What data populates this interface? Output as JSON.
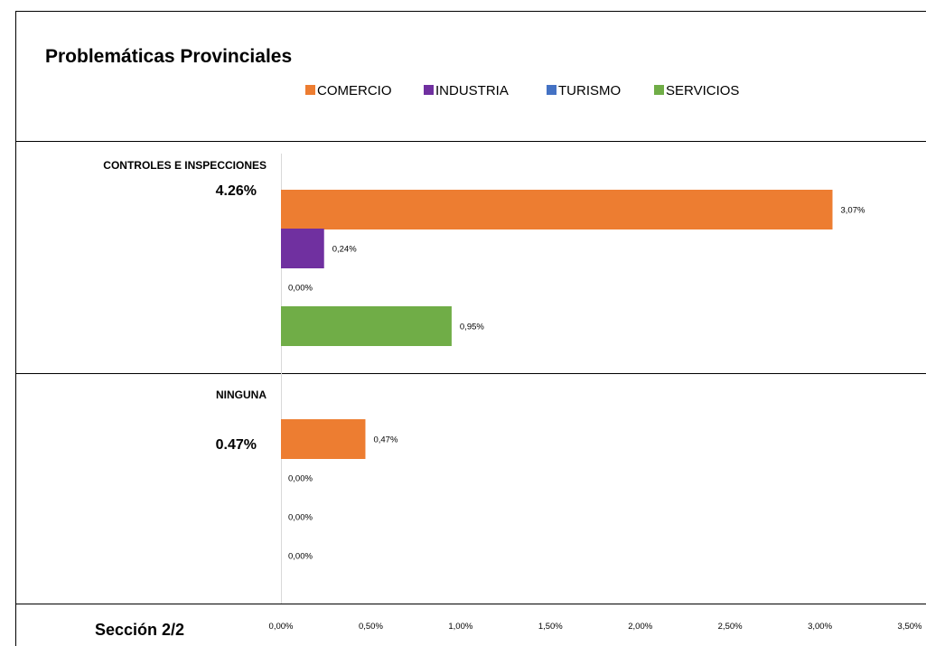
{
  "title": "Problemáticas Provinciales",
  "footer": "Sección 2/2",
  "chart_data": {
    "type": "bar",
    "orientation": "horizontal",
    "value_unit": "%",
    "xlim": [
      0,
      3.5
    ],
    "xticks": [
      0,
      0.5,
      1.0,
      1.5,
      2.0,
      2.5,
      3.0,
      3.5
    ],
    "xtick_labels": [
      "0,00%",
      "0,50%",
      "1,00%",
      "1,50%",
      "2,00%",
      "2,50%",
      "3,00%",
      "3,50%"
    ],
    "legend_position": "top",
    "series": [
      {
        "name": "COMERCIO",
        "color": "#ED7D31"
      },
      {
        "name": "INDUSTRIA",
        "color": "#7030A0"
      },
      {
        "name": "TURISMO",
        "color": "#4472C4"
      },
      {
        "name": "SERVICIOS",
        "color": "#70AD47"
      }
    ],
    "categories": [
      {
        "label": "CONTROLES E INSPECCIONES",
        "total": "4.26%",
        "values": [
          3.07,
          0.24,
          0.0,
          0.95
        ],
        "value_labels": [
          "3,07%",
          "0,24%",
          "0,00%",
          "0,95%"
        ]
      },
      {
        "label": "NINGUNA",
        "total": "0.47%",
        "values": [
          0.47,
          0.0,
          0.0,
          0.0
        ],
        "value_labels": [
          "0,47%",
          "0,00%",
          "0,00%",
          "0,00%"
        ]
      }
    ]
  }
}
